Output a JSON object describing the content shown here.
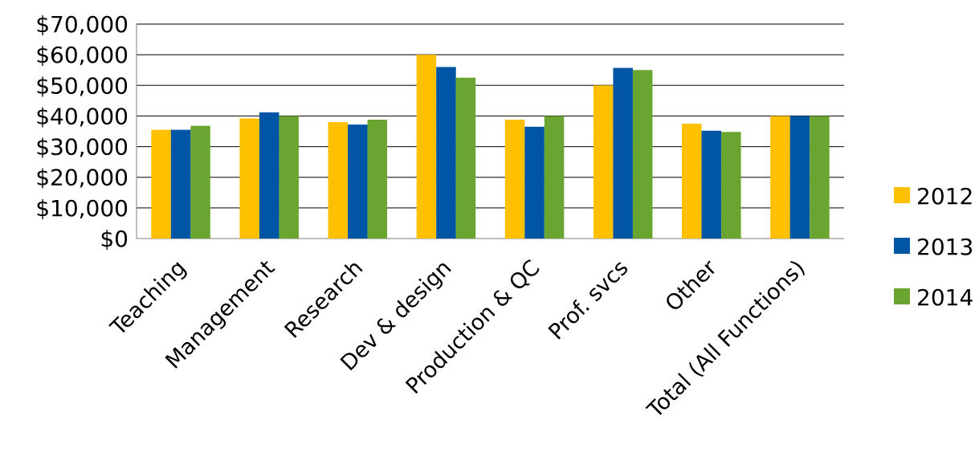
{
  "chart_data": {
    "type": "bar",
    "title": "",
    "xlabel": "",
    "ylabel": "",
    "categories": [
      "Teaching",
      "Management",
      "Research",
      "Dev & design",
      "Production & QC",
      "Prof. svcs",
      "Other",
      "Total (All Functions)"
    ],
    "series": [
      {
        "name": "2012",
        "color": "#FFC000",
        "values": [
          35500,
          39200,
          38000,
          60000,
          38800,
          50000,
          37500,
          40000
        ]
      },
      {
        "name": "2013",
        "color": "#0055A5",
        "values": [
          35500,
          41200,
          37200,
          56000,
          36500,
          55700,
          35200,
          40000
        ]
      },
      {
        "name": "2014",
        "color": "#6AA531",
        "values": [
          36800,
          40000,
          38800,
          52500,
          40000,
          55000,
          34800,
          40000
        ]
      }
    ],
    "ylim": [
      0,
      70000
    ],
    "yticks": [
      0,
      10000,
      20000,
      30000,
      40000,
      50000,
      60000,
      70000
    ],
    "ytick_labels": [
      "$0",
      "$10,000",
      "$20,000",
      "$30,000",
      "$40,000",
      "$50,000",
      "$60,000",
      "$70,000"
    ],
    "grid": true,
    "legend_position": "right"
  }
}
